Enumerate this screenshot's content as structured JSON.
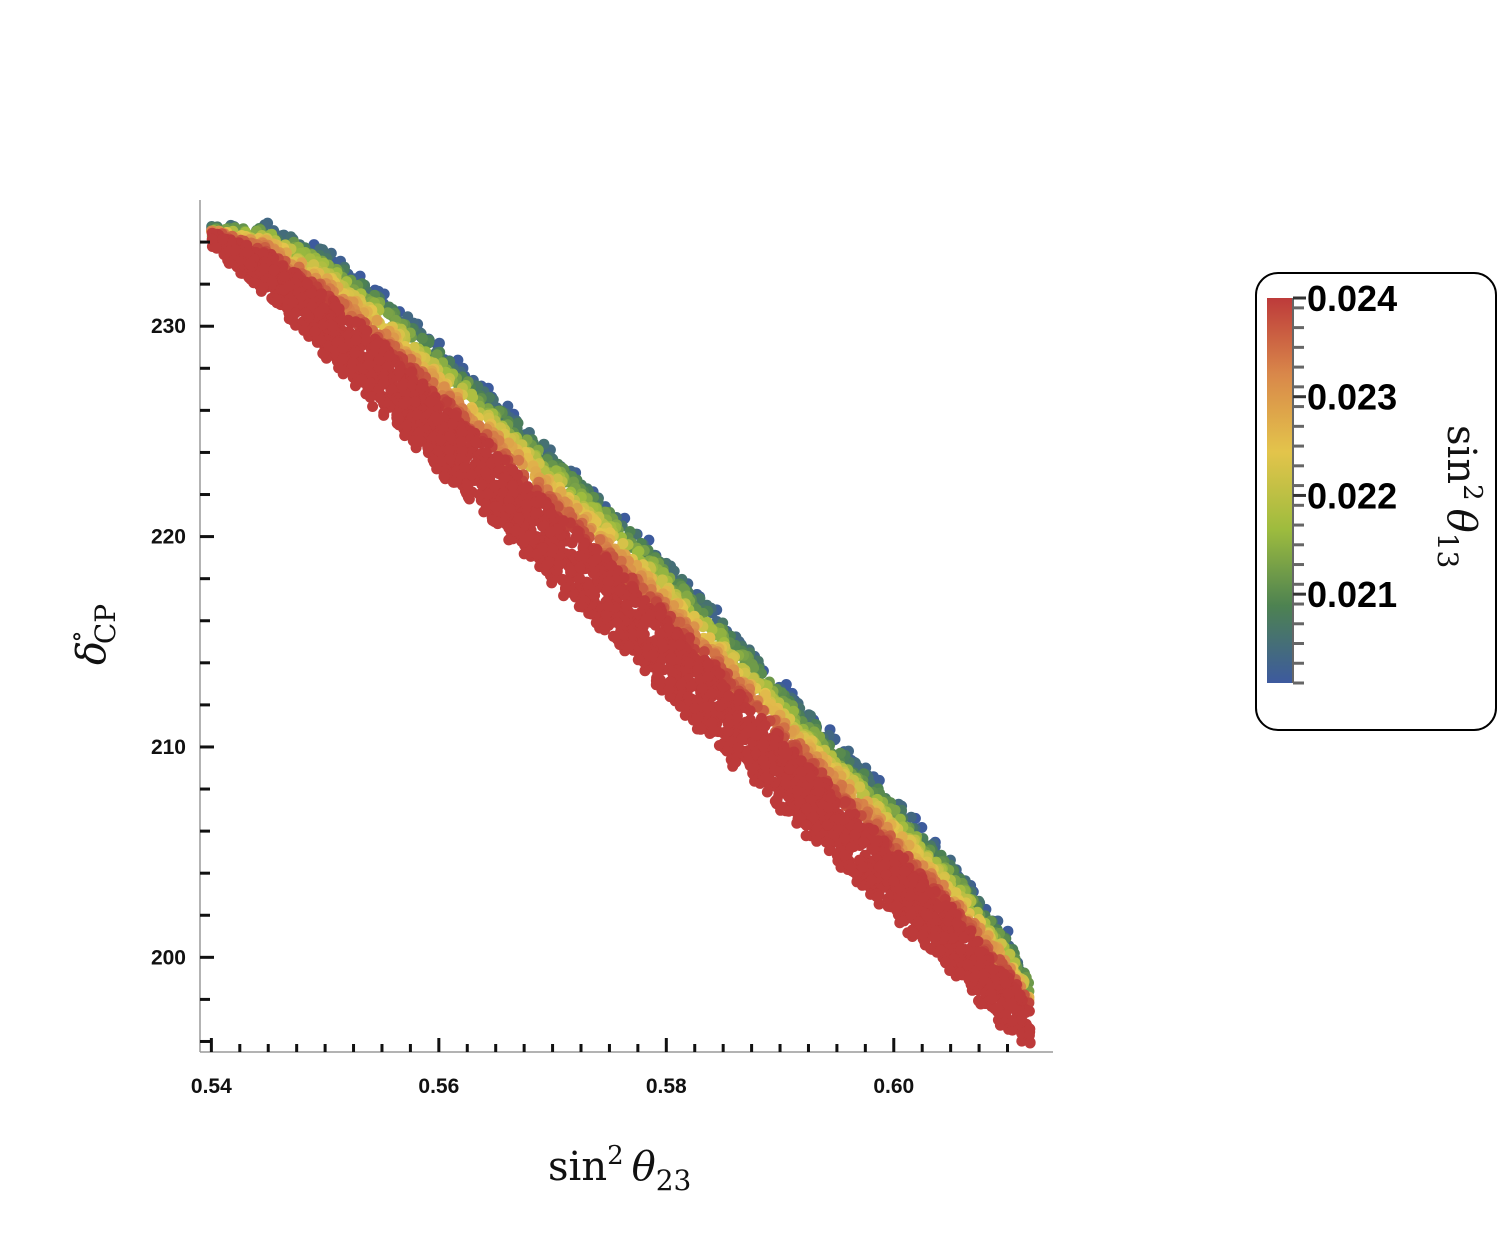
{
  "chart_data": {
    "type": "scatter",
    "title": "",
    "xlabel": "sin² θ₂₃",
    "ylabel": "δ°CP",
    "xlim": [
      0.539,
      0.614
    ],
    "ylim": [
      195.5,
      236.0
    ],
    "x_ticks": [
      0.54,
      0.56,
      0.58,
      0.6
    ],
    "x_tick_labels": [
      "0.54",
      "0.56",
      "0.58",
      "0.60"
    ],
    "y_ticks": [
      200,
      210,
      220,
      230
    ],
    "y_tick_labels": [
      "200",
      "210",
      "220",
      "230"
    ],
    "grid": false,
    "colorbar": {
      "label": "sin² θ₁₃",
      "min": 0.0201,
      "max": 0.024,
      "ticks": [
        0.021,
        0.022,
        0.023,
        0.024
      ],
      "tick_labels": [
        "0.021",
        "0.022",
        "0.023",
        "0.024"
      ],
      "colors": [
        "#3d5a9e",
        "#4d8251",
        "#9ebc3e",
        "#e3c44b",
        "#d9884a",
        "#bd3a3a"
      ]
    },
    "band": {
      "description_points_x": [
        0.54,
        0.545,
        0.55,
        0.555,
        0.56,
        0.565,
        0.57,
        0.575,
        0.58,
        0.585,
        0.59,
        0.595,
        0.6,
        0.605,
        0.61,
        0.612
      ],
      "upper_boundary_y": [
        234.5,
        234.7,
        233.5,
        231.5,
        229.0,
        226.5,
        224.0,
        221.5,
        218.8,
        216.0,
        213.0,
        210.2,
        207.5,
        204.5,
        201.0,
        198.8
      ],
      "red_lower_y": [
        234.0,
        231.5,
        228.7,
        226.0,
        223.3,
        220.7,
        218.0,
        215.3,
        212.7,
        209.8,
        207.2,
        204.5,
        202.0,
        199.5,
        196.5,
        196.0
      ]
    },
    "series": [
      {
        "sin2_theta13": 0.024,
        "role": "lower edge of band",
        "points": [
          [
            0.541,
            233.0
          ],
          [
            0.55,
            228.5
          ],
          [
            0.56,
            223.6
          ],
          [
            0.57,
            218.3
          ],
          [
            0.58,
            213.0
          ],
          [
            0.59,
            207.6
          ],
          [
            0.6,
            202.4
          ],
          [
            0.608,
            198.0
          ]
        ]
      },
      {
        "sin2_theta13": 0.0234,
        "role": "centre of band",
        "points": [
          [
            0.545,
            232.8
          ],
          [
            0.555,
            228.8
          ],
          [
            0.565,
            223.8
          ],
          [
            0.575,
            218.7
          ],
          [
            0.585,
            213.4
          ],
          [
            0.595,
            208.2
          ],
          [
            0.605,
            202.6
          ],
          [
            0.61,
            198.6
          ]
        ]
      },
      {
        "sin2_theta13": 0.0201,
        "role": "upper edge of band",
        "points": [
          [
            0.55,
            233.3
          ],
          [
            0.56,
            228.9
          ],
          [
            0.57,
            223.8
          ],
          [
            0.58,
            218.6
          ],
          [
            0.59,
            213.0
          ],
          [
            0.6,
            207.4
          ],
          [
            0.608,
            202.0
          ],
          [
            0.612,
            198.7
          ]
        ]
      }
    ]
  }
}
